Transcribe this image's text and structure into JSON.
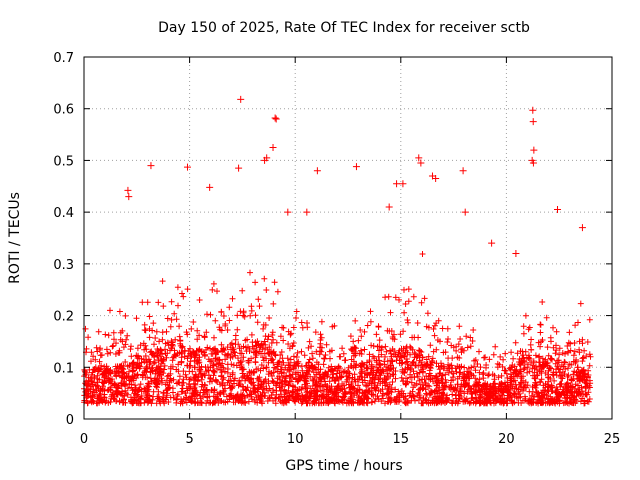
{
  "chart_data": {
    "type": "scatter",
    "title": "Day 150 of 2025, Rate Of TEC Index for receiver sctb",
    "xlabel": "GPS time / hours",
    "ylabel": "ROTI / TECUs",
    "xlim": [
      0,
      25
    ],
    "ylim": [
      0,
      0.7
    ],
    "xticks": [
      "0",
      "5",
      "10",
      "15",
      "20",
      "25"
    ],
    "yticks": [
      "0",
      "0.1",
      "0.2",
      "0.3",
      "0.4",
      "0.5",
      "0.6",
      "0.7"
    ],
    "grid": true,
    "marker": "+",
    "color": "#ff0000",
    "series": [
      {
        "name": "",
        "x": [
          7.42,
          9.05,
          9.1,
          21.25,
          21.27,
          21.3,
          21.22,
          21.28,
          3.17,
          4.9,
          8.55,
          8.65,
          12.9,
          15.85,
          15.95,
          17.95,
          5.95,
          7.32,
          14.8,
          15.1,
          16.5,
          16.65,
          11.05,
          2.08,
          2.12,
          22.42,
          14.45,
          10.55,
          18.05,
          8.95,
          9.65,
          19.3,
          20.45,
          23.6
        ],
        "y": [
          0.618,
          0.582,
          0.58,
          0.597,
          0.575,
          0.52,
          0.5,
          0.495,
          0.49,
          0.487,
          0.5,
          0.505,
          0.488,
          0.505,
          0.495,
          0.48,
          0.448,
          0.485,
          0.455,
          0.455,
          0.47,
          0.465,
          0.48,
          0.442,
          0.43,
          0.405,
          0.41,
          0.4,
          0.4,
          0.525,
          0.4,
          0.34,
          0.32,
          0.37
        ]
      }
    ]
  }
}
